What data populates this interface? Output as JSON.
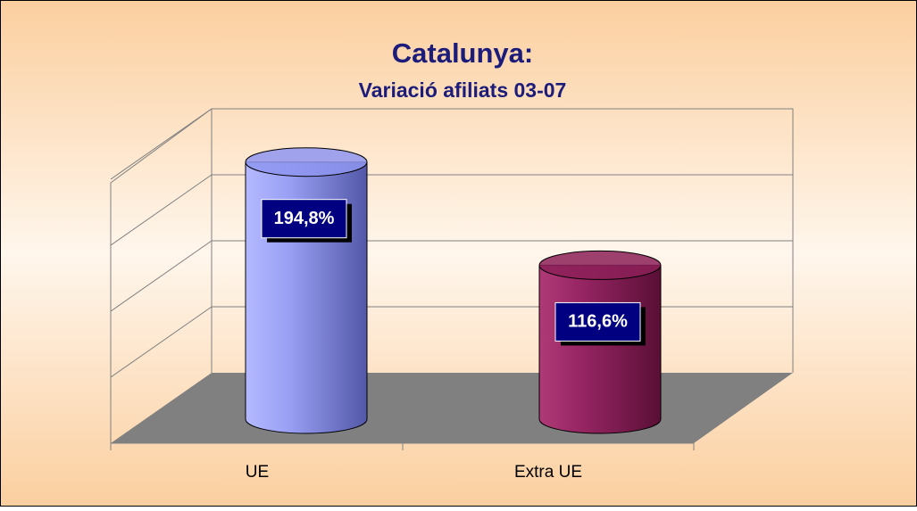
{
  "chart_data": {
    "type": "bar",
    "title": "Catalunya:",
    "subtitle": "Variació afiliats 03-07",
    "categories": [
      "UE",
      "Extra UE"
    ],
    "values": [
      194.8,
      116.6
    ],
    "value_labels": [
      "194,8%",
      "116,6%"
    ],
    "colors": [
      "#8f96f0",
      "#8c2058"
    ],
    "ylim": [
      0,
      200
    ],
    "yticks": [
      0,
      50,
      100,
      150,
      200
    ],
    "grid": true
  }
}
